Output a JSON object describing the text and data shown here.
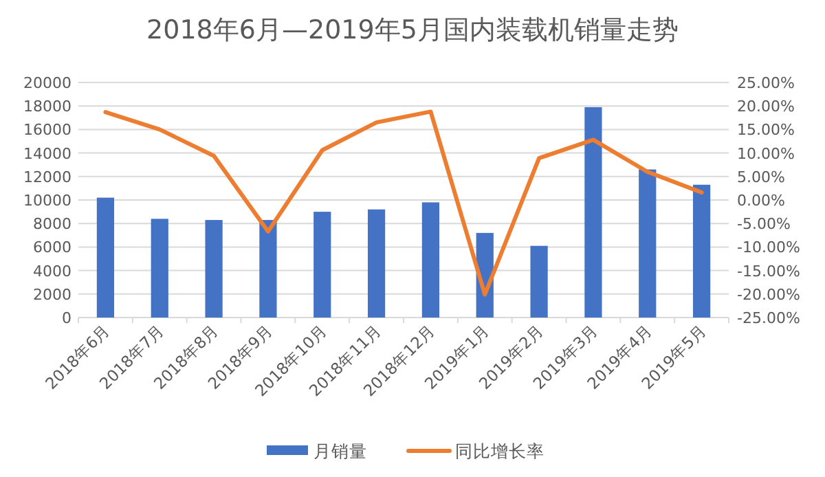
{
  "chart_data": {
    "type": "bar",
    "title": "2018年6月—2019年5月国内装载机销量走势",
    "categories": [
      "2018年6月",
      "2018年7月",
      "2018年8月",
      "2018年9月",
      "2018年10月",
      "2018年11月",
      "2018年12月",
      "2019年1月",
      "2019年2月",
      "2019年3月",
      "2019年4月",
      "2019年5月"
    ],
    "series": [
      {
        "name": "月销量",
        "color": "#4472c4",
        "values": [
          10200,
          8400,
          8300,
          8300,
          9000,
          9200,
          9800,
          7200,
          6100,
          17900,
          12600,
          11300
        ]
      },
      {
        "name": "同比增长率",
        "type": "line",
        "axis": "y2",
        "color": "#ed7d31",
        "values": [
          18.7,
          15.0,
          9.4,
          -6.7,
          10.6,
          16.5,
          18.8,
          -20.1,
          8.9,
          12.8,
          6.0,
          1.6
        ]
      }
    ],
    "ylim": [
      0,
      20000
    ],
    "yticks": [
      0,
      2000,
      4000,
      6000,
      8000,
      10000,
      12000,
      14000,
      16000,
      18000,
      20000
    ],
    "y2lim": [
      -25,
      25
    ],
    "y2ticks": [
      {
        "value": -25,
        "label": "-25.00%"
      },
      {
        "value": -20,
        "label": "-20.00%"
      },
      {
        "value": -15,
        "label": "-15.00%"
      },
      {
        "value": -10,
        "label": "-10.00%"
      },
      {
        "value": -5,
        "label": "-5.00%"
      },
      {
        "value": 0,
        "label": "0.00%"
      },
      {
        "value": 5,
        "label": "5.00%"
      },
      {
        "value": 10,
        "label": "10.00%"
      },
      {
        "value": 15,
        "label": "15.00%"
      },
      {
        "value": 20,
        "label": "20.00%"
      },
      {
        "value": 25,
        "label": "25.00%"
      }
    ],
    "grid": "y",
    "legend": "bottom",
    "line_style": "solid",
    "marker": "none"
  }
}
